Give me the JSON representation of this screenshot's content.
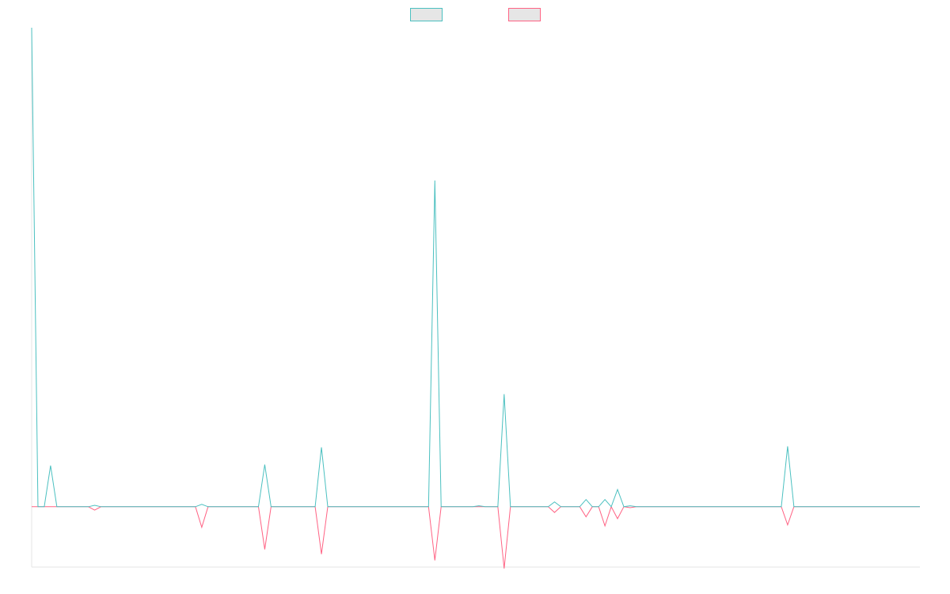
{
  "chart_data": {
    "type": "line",
    "ylim": [
      -12.6,
      100
    ],
    "series": [
      {
        "color": "#4bc0c0",
        "values": [
          100,
          0,
          0,
          8.6,
          0,
          0,
          0,
          0,
          0,
          0,
          0.3,
          0,
          0,
          0,
          0,
          0,
          0,
          0,
          0,
          0,
          0,
          0,
          0,
          0,
          0,
          0,
          0,
          0.5,
          0,
          0,
          0,
          0,
          0,
          0,
          0,
          0,
          0,
          8.8,
          0,
          0,
          0,
          0,
          0,
          0,
          0,
          0,
          12.4,
          0,
          0,
          0,
          0,
          0,
          0,
          0,
          0,
          0,
          0,
          0,
          0,
          0,
          0,
          0,
          0,
          0,
          68.1,
          0,
          0,
          0,
          0,
          0,
          0,
          0.2,
          0,
          0,
          0,
          23.5,
          0,
          0,
          0,
          0,
          0,
          0,
          0,
          1.0,
          0,
          0,
          0,
          0,
          1.5,
          0,
          0,
          1.5,
          0,
          3.6,
          0,
          0.2,
          0,
          0,
          0,
          0,
          0,
          0,
          0,
          0,
          0,
          0,
          0,
          0,
          0,
          0,
          0,
          0,
          0,
          0,
          0,
          0,
          0,
          0,
          0,
          0,
          12.6,
          0,
          0,
          0,
          0,
          0,
          0,
          0,
          0,
          0,
          0,
          0,
          0,
          0,
          0,
          0,
          0,
          0,
          0,
          0,
          0,
          0
        ]
      },
      {
        "color": "#ff6384",
        "values": [
          0,
          0,
          0,
          0,
          0,
          0,
          0,
          0,
          0,
          0,
          -0.7,
          0,
          0,
          0,
          0,
          0,
          0,
          0,
          0,
          0,
          0,
          0,
          0,
          0,
          0,
          0,
          0,
          -4.3,
          0,
          0,
          0,
          0,
          0,
          0,
          0,
          0,
          0,
          -8.9,
          0,
          0,
          0,
          0,
          0,
          0,
          0,
          0,
          -9.9,
          0,
          0,
          0,
          0,
          0,
          0,
          0,
          0,
          0,
          0,
          0,
          0,
          0,
          0,
          0,
          0,
          0,
          -11.2,
          0,
          0,
          0,
          0,
          0,
          0,
          0,
          0,
          0,
          0,
          -12.9,
          0,
          0,
          0,
          0,
          0,
          0,
          0,
          -1.2,
          0,
          0,
          0,
          0,
          -2.1,
          0,
          0,
          -4.0,
          0,
          -2.5,
          0,
          -0.2,
          0,
          0,
          0,
          0,
          0,
          0,
          0,
          0,
          0,
          0,
          0,
          0,
          0,
          0,
          0,
          0,
          0,
          0,
          0,
          0,
          0,
          0,
          0,
          0,
          -3.8,
          0,
          0,
          0,
          0,
          0,
          0,
          0,
          0,
          0,
          0,
          0,
          0,
          0,
          0,
          0,
          0,
          0,
          0,
          0,
          0,
          0
        ]
      }
    ]
  }
}
